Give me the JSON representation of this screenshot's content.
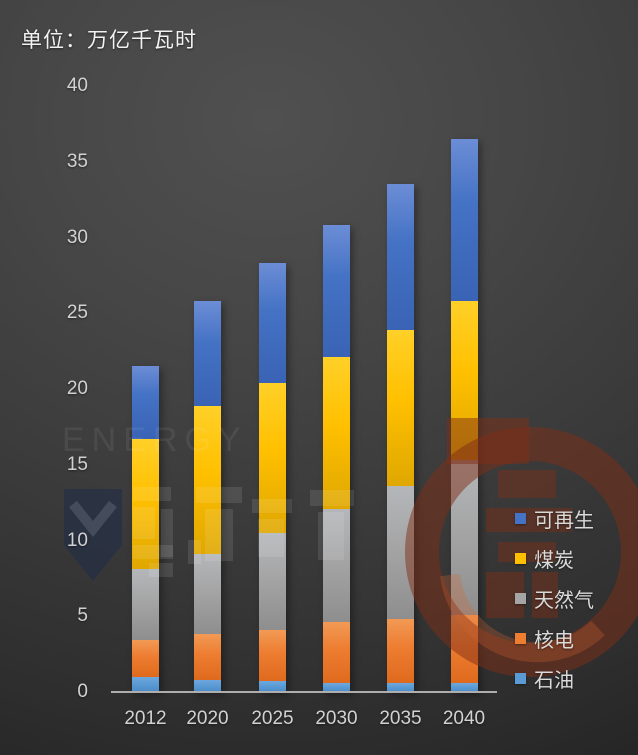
{
  "title": "单位：万亿千瓦时",
  "chart_data": {
    "type": "bar",
    "stacked": true,
    "title": "单位：万亿千瓦时",
    "categories": [
      "2012",
      "2020",
      "2025",
      "2030",
      "2035",
      "2040"
    ],
    "series": [
      {
        "name": "石油",
        "color": "#5B9BD5",
        "values": [
          1.0,
          0.8,
          0.7,
          0.6,
          0.6,
          0.6
        ]
      },
      {
        "name": "核电",
        "color": "#ED7D31",
        "values": [
          2.4,
          3.0,
          3.4,
          4.0,
          4.2,
          4.5
        ]
      },
      {
        "name": "天然气",
        "color": "#A5A5A5",
        "values": [
          4.7,
          5.3,
          6.4,
          7.5,
          8.8,
          10.2
        ]
      },
      {
        "name": "煤炭",
        "color": "#FFC000",
        "values": [
          8.6,
          9.8,
          9.9,
          10.0,
          10.3,
          10.5
        ]
      },
      {
        "name": "可再生",
        "color": "#4472C4",
        "values": [
          4.8,
          6.9,
          7.9,
          8.7,
          9.6,
          10.7
        ]
      }
    ],
    "totals": [
      21.5,
      25.8,
      28.3,
      30.8,
      33.5,
      36.5
    ],
    "xlabel": "",
    "ylabel": "",
    "ylim": [
      0,
      40
    ],
    "yticks": [
      0,
      5,
      10,
      15,
      20,
      25,
      30,
      35,
      40
    ],
    "grid": false,
    "legend": {
      "position": "right-bottom",
      "order_top_to_bottom": [
        "可再生",
        "煤炭",
        "天然气",
        "核电",
        "石油"
      ]
    }
  },
  "watermark": {
    "text": "ENERGY"
  },
  "colors": {
    "background_center": "#505050",
    "background_edge": "#252525",
    "axis_line": "#aeaeae",
    "tick_text": "#d2d2d2",
    "title_text": "#f2f2f2",
    "legend_text": "#dadada",
    "watermark_red": "#802e16",
    "watermark_navy": "#1c2a4a"
  }
}
